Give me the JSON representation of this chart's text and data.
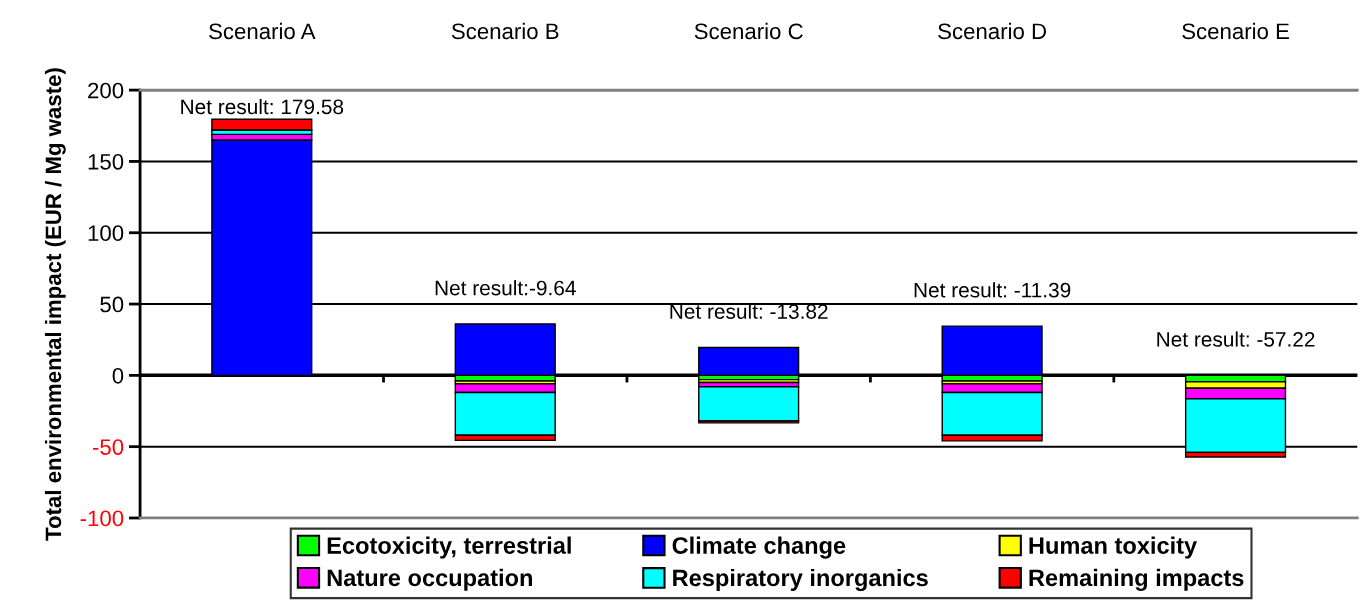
{
  "chart_data": {
    "type": "bar",
    "stacked": true,
    "ylabel": "Total environmental impact (EUR / Mg waste)",
    "categories": [
      "Scenario A",
      "Scenario B",
      "Scenario C",
      "Scenario D",
      "Scenario E"
    ],
    "series": [
      {
        "name": "Ecotoxicity, terrestrial",
        "color": "#00ff00",
        "values": [
          0,
          -4,
          -3,
          -4,
          -4.5
        ]
      },
      {
        "name": "Climate change",
        "color": "#0000ff",
        "values": [
          165,
          36,
          19.5,
          34.5,
          null
        ]
      },
      {
        "name": "Human toxicity",
        "color": "#ffff00",
        "values": [
          0,
          -2,
          -2,
          -2,
          -4.5
        ]
      },
      {
        "name": "Nature occupation",
        "color": "#ff00ff",
        "values": [
          4,
          -6,
          -3,
          -6,
          -7.5
        ]
      },
      {
        "name": "Respiratory inorganics",
        "color": "#00ffff",
        "values": [
          3,
          -30,
          -24,
          -30,
          -37.5
        ]
      },
      {
        "name": "Remaining impacts",
        "color": "#ff0000",
        "values": [
          7.6,
          -3.6,
          -1.3,
          -3.9,
          -3.2
        ]
      }
    ],
    "ylim": [
      -100,
      200
    ],
    "yticks": [
      -100,
      -50,
      0,
      50,
      100,
      150,
      200
    ],
    "grid": "y",
    "legend": "bottom",
    "annotations": [
      "Net result: 179.58",
      "Net result:-9.64",
      "Net result: -13.82",
      "Net result: -11.39",
      "Net result: -57.22"
    ]
  }
}
